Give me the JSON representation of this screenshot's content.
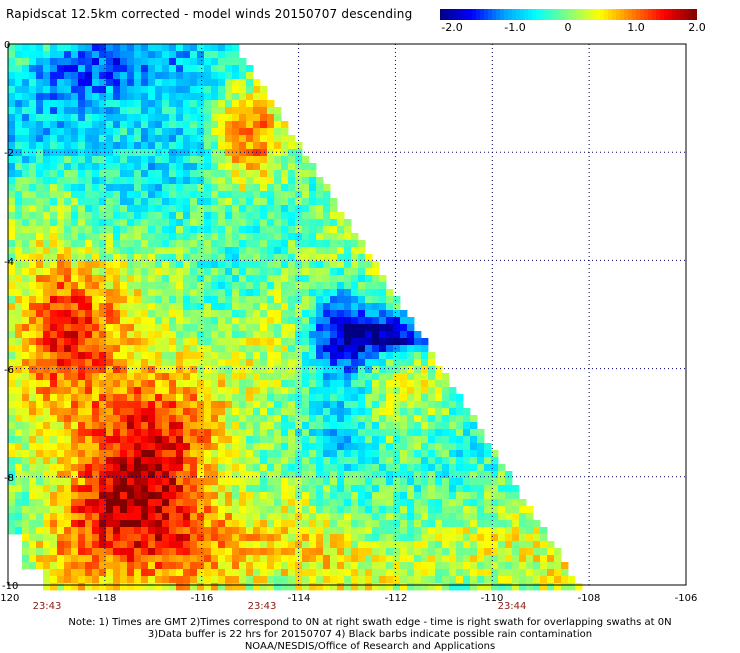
{
  "title": "Rapidscat 12.5km corrected - model winds 20150707 descending",
  "colorbar": {
    "labels": [
      "-2.0",
      "-1.0",
      "0",
      "1.0",
      "2.0"
    ],
    "values": [
      -2.0,
      -1.0,
      0.0,
      1.0,
      2.0
    ],
    "min": -2.0,
    "max": 2.0,
    "colors": [
      "#000080",
      "#0000ff",
      "#00a0ff",
      "#00ffff",
      "#80ff80",
      "#ffff00",
      "#ff8000",
      "#ff0000",
      "#800000"
    ]
  },
  "map": {
    "lon_ticks": [
      "-120",
      "-118",
      "-116",
      "-114",
      "-112",
      "-110",
      "-108",
      "-106"
    ],
    "lon_values": [
      -120,
      -118,
      -116,
      -114,
      -112,
      -110,
      -108,
      -106
    ],
    "lat_ticks": [
      "0",
      "-2",
      "-4",
      "-6",
      "-8",
      "-10"
    ],
    "lat_values": [
      0,
      -2,
      -4,
      -6,
      -8,
      -10
    ],
    "lon_range": [
      -120,
      -106
    ],
    "lat_range": [
      -10,
      0
    ],
    "times": [
      {
        "label": "23:43",
        "lon": -118.9
      },
      {
        "label": "23:43",
        "lon": -114.8
      },
      {
        "label": "23:44",
        "lon": -109.6
      }
    ]
  },
  "notes": [
    "Note: 1) Times are GMT 2)Times correspond to 0N at right swath edge - time is right swath for overlapping swaths at 0N",
    "3)Data buffer is 22 hrs for 20150707 4) Black barbs indicate possible rain contamination",
    "NOAA/NESDIS/Office of Research and Applications"
  ]
}
